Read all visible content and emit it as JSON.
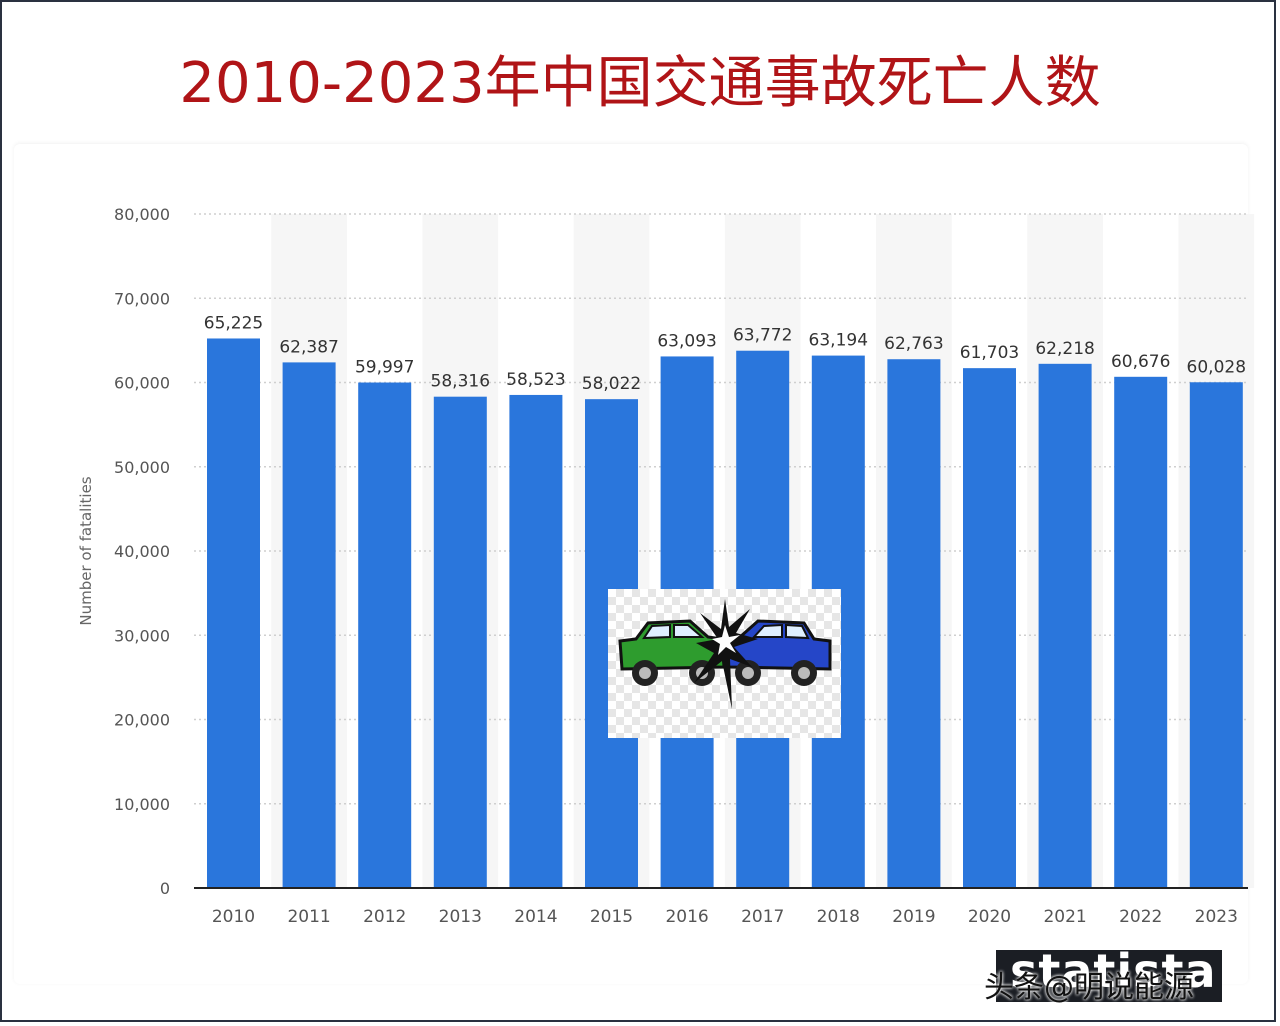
{
  "title": "2010-2023年中国交通事故死亡人数",
  "watermark": {
    "logo_text": "statista",
    "overlay_text": "头条@明说能源"
  },
  "image": {
    "name": "car-crash-illustration",
    "colors": {
      "left_car": "#2e9c2e",
      "right_car": "#2546c8"
    }
  },
  "colors": {
    "bar": "#2a76dc",
    "title": "#b01417",
    "grid": "#cfcfcf",
    "band": "#f6f6f6"
  },
  "chart_data": {
    "type": "bar",
    "categories": [
      "2010",
      "2011",
      "2012",
      "2013",
      "2014",
      "2015",
      "2016",
      "2017",
      "2018",
      "2019",
      "2020",
      "2021",
      "2022",
      "2023"
    ],
    "values": [
      65225,
      62387,
      59997,
      58316,
      58523,
      58022,
      63093,
      63772,
      63194,
      62763,
      61703,
      62218,
      60676,
      60028
    ],
    "data_labels": [
      "65,225",
      "62,387",
      "59,997",
      "58,316",
      "58,523",
      "58,022",
      "63,093",
      "63,772",
      "63,194",
      "62,763",
      "61,703",
      "62,218",
      "60,676",
      "60,028"
    ],
    "ylabel": "Number of fatalities",
    "xlabel": "",
    "ylim": [
      0,
      80000
    ],
    "yticks": [
      0,
      10000,
      20000,
      30000,
      40000,
      50000,
      60000,
      70000,
      80000
    ],
    "ytick_labels": [
      "0",
      "10,000",
      "20,000",
      "30,000",
      "40,000",
      "50,000",
      "60,000",
      "70,000",
      "80,000"
    ],
    "grid": true
  }
}
